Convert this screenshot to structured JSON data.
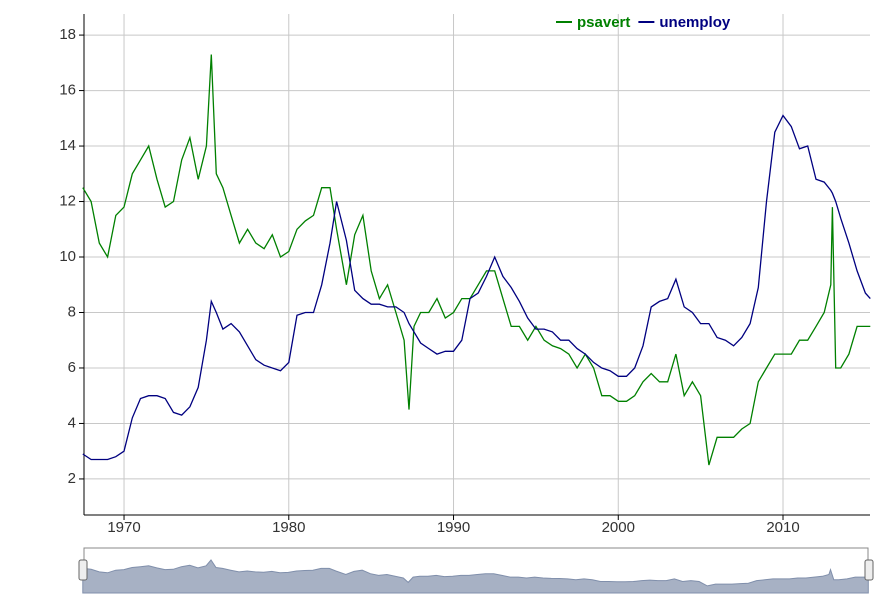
{
  "chart_data": {
    "type": "line",
    "x": [
      1967.5,
      1968.0,
      1968.5,
      1969.0,
      1969.5,
      1970.0,
      1970.5,
      1971.0,
      1971.5,
      1972.0,
      1972.5,
      1973.0,
      1973.5,
      1974.0,
      1974.5,
      1975.0,
      1975.3,
      1975.6,
      1976.0,
      1976.5,
      1977.0,
      1977.5,
      1978.0,
      1978.5,
      1979.0,
      1979.5,
      1980.0,
      1980.5,
      1981.0,
      1981.5,
      1982.0,
      1982.5,
      1982.9,
      1983.5,
      1984.0,
      1984.5,
      1985.0,
      1985.5,
      1986.0,
      1986.5,
      1987.0,
      1987.3,
      1987.6,
      1988.0,
      1988.5,
      1989.0,
      1989.5,
      1990.0,
      1990.5,
      1991.0,
      1991.5,
      1992.0,
      1992.5,
      1993.0,
      1993.5,
      1994.0,
      1994.5,
      1995.0,
      1995.5,
      1996.0,
      1996.5,
      1997.0,
      1997.5,
      1998.0,
      1998.5,
      1999.0,
      1999.5,
      2000.0,
      2000.5,
      2001.0,
      2001.5,
      2002.0,
      2002.5,
      2003.0,
      2003.5,
      2004.0,
      2004.5,
      2005.0,
      2005.5,
      2006.0,
      2006.5,
      2007.0,
      2007.5,
      2008.0,
      2008.5,
      2009.0,
      2009.5,
      2010.0,
      2010.5,
      2011.0,
      2011.5,
      2012.0,
      2012.5,
      2012.9,
      2013.0,
      2013.2,
      2013.5,
      2014.0,
      2014.5,
      2015.0,
      2015.3
    ],
    "series": [
      {
        "name": "psavert",
        "color": "#008000",
        "values": [
          12.5,
          12.0,
          10.5,
          10.0,
          11.5,
          11.8,
          13.0,
          13.5,
          14.0,
          12.8,
          11.8,
          12.0,
          13.5,
          14.3,
          12.8,
          14.0,
          17.3,
          13.0,
          12.5,
          11.5,
          10.5,
          11.0,
          10.5,
          10.3,
          10.8,
          10.0,
          10.2,
          11.0,
          11.3,
          11.5,
          12.5,
          12.5,
          11.0,
          9.0,
          10.8,
          11.5,
          9.5,
          8.5,
          9.0,
          8.0,
          7.0,
          4.5,
          7.5,
          8.0,
          8.0,
          8.5,
          7.8,
          8.0,
          8.5,
          8.5,
          9.0,
          9.5,
          9.5,
          8.5,
          7.5,
          7.5,
          7.0,
          7.5,
          7.0,
          6.8,
          6.7,
          6.5,
          6.0,
          6.5,
          6.0,
          5.0,
          5.0,
          4.8,
          4.8,
          5.0,
          5.5,
          5.8,
          5.5,
          5.5,
          6.5,
          5.0,
          5.5,
          5.0,
          2.5,
          3.5,
          3.5,
          3.5,
          3.8,
          4.0,
          5.5,
          6.0,
          6.5,
          6.5,
          6.5,
          7.0,
          7.0,
          7.5,
          8.0,
          9.0,
          11.8,
          6.0,
          6.0,
          6.5,
          7.5,
          7.5,
          7.5
        ]
      },
      {
        "name": "unemploy",
        "color": "#000080",
        "values": [
          2.9,
          2.7,
          2.7,
          2.7,
          2.8,
          3.0,
          4.2,
          4.9,
          5.0,
          5.0,
          4.9,
          4.4,
          4.3,
          4.6,
          5.3,
          7.0,
          8.4,
          8.0,
          7.4,
          7.6,
          7.3,
          6.8,
          6.3,
          6.1,
          6.0,
          5.9,
          6.2,
          7.9,
          8.0,
          8.0,
          9.0,
          10.5,
          12.0,
          10.6,
          8.8,
          8.5,
          8.3,
          8.3,
          8.2,
          8.2,
          8.0,
          7.6,
          7.3,
          6.9,
          6.7,
          6.5,
          6.6,
          6.6,
          7.0,
          8.5,
          8.7,
          9.3,
          10.0,
          9.3,
          8.9,
          8.4,
          7.8,
          7.4,
          7.4,
          7.3,
          7.0,
          7.0,
          6.7,
          6.5,
          6.2,
          6.0,
          5.9,
          5.7,
          5.7,
          6.0,
          6.8,
          8.2,
          8.4,
          8.5,
          9.2,
          8.2,
          8.0,
          7.6,
          7.6,
          7.1,
          7.0,
          6.8,
          7.1,
          7.6,
          8.9,
          12.0,
          14.5,
          15.1,
          14.7,
          13.9,
          14.0,
          12.8,
          12.7,
          12.4,
          12.3,
          12.0,
          11.4,
          10.5,
          9.5,
          8.7,
          8.5
        ]
      }
    ],
    "xlim": [
      1967.57,
      2015.28
    ],
    "xticks": [
      1970,
      1980,
      1990,
      2000,
      2010
    ],
    "ylim": [
      0.7,
      18.76
    ],
    "yticks": [
      2,
      4,
      6,
      8,
      10,
      12,
      14,
      16,
      18
    ],
    "grid": true,
    "legend": "top-right"
  }
}
